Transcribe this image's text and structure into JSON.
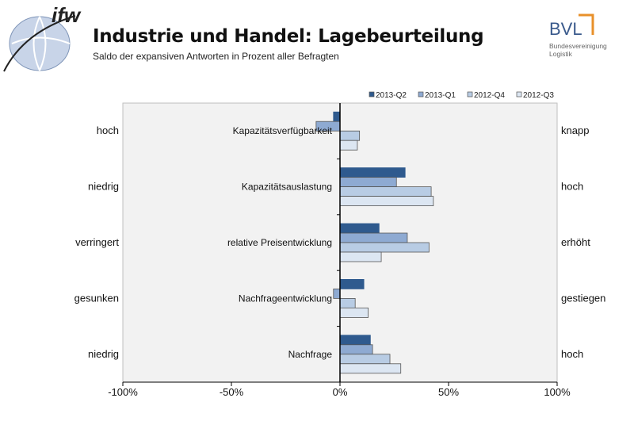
{
  "header": {
    "logo_left": "ifw",
    "title": "Industrie und Handel: Lagebeurteilung",
    "subtitle": "Saldo der expansiven Antworten in Prozent aller Befragten",
    "logo_right": "BVL",
    "logo_right_sub": "Bundesvereinigung Logistik"
  },
  "chart_data": {
    "type": "bar",
    "orientation": "horizontal",
    "categories": [
      "Kapazitätsverfügbarkeit",
      "Kapazitätsauslastung",
      "relative Preisentwicklung",
      "Nachfrageentwicklung",
      "Nachfrage"
    ],
    "left_labels": [
      "hoch",
      "niedrig",
      "verringert",
      "gesunken",
      "niedrig"
    ],
    "right_labels": [
      "knapp",
      "hoch",
      "erhöht",
      "gestiegen",
      "hoch"
    ],
    "series": [
      {
        "name": "2013-Q2",
        "color": "#2f5a8e",
        "values": [
          -3,
          30,
          18,
          11,
          14
        ]
      },
      {
        "name": "2013-Q1",
        "color": "#8eaad2",
        "values": [
          -11,
          26,
          31,
          -3,
          15
        ]
      },
      {
        "name": "2012-Q4",
        "color": "#b8cce4",
        "values": [
          9,
          42,
          41,
          7,
          23
        ]
      },
      {
        "name": "2012-Q3",
        "color": "#dce6f2",
        "values": [
          8,
          43,
          19,
          13,
          28
        ]
      }
    ],
    "xlim": [
      -100,
      100
    ],
    "xticks": [
      -100,
      -50,
      0,
      50,
      100
    ],
    "xtick_labels": [
      "-100%",
      "-50%",
      "0%",
      "50%",
      "100%"
    ],
    "legend": "top-right",
    "grid": false
  }
}
